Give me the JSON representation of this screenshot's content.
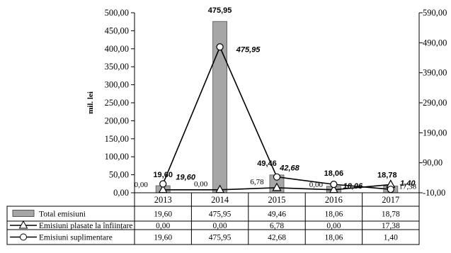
{
  "chart_data": {
    "type": "bar",
    "categories": [
      "2013",
      "2014",
      "2015",
      "2016",
      "2017"
    ],
    "ylabel": "mil. lei",
    "ylim": [
      0,
      500
    ],
    "y_ticks": [
      "0,00",
      "50,00",
      "100,00",
      "150,00",
      "200,00",
      "250,00",
      "300,00",
      "350,00",
      "400,00",
      "450,00",
      "500,00"
    ],
    "y2lim": [
      -10,
      590
    ],
    "y2_ticks": [
      "-10,00",
      "90,00",
      "190,00",
      "290,00",
      "390,00",
      "490,00",
      "590,00"
    ],
    "series": [
      {
        "name": "Total emisiuni",
        "type": "bar",
        "axis": "left",
        "color": "#a6a6a6",
        "values": [
          19.6,
          475.95,
          49.46,
          18.06,
          18.78
        ],
        "labels": [
          "19,60",
          "475,95",
          "49,46",
          "18,06",
          "18,78"
        ]
      },
      {
        "name": "Emisiuni plasate la înființare",
        "type": "line",
        "marker": "triangle",
        "axis": "right",
        "color": "#000000",
        "values": [
          0.0,
          0.0,
          6.78,
          0.0,
          17.38
        ],
        "labels": [
          "0,00",
          "0,00",
          "6,78",
          "0,00",
          "17,38"
        ]
      },
      {
        "name": "Emisiuni suplimentare",
        "type": "line",
        "marker": "circle",
        "axis": "right",
        "color": "#000000",
        "values": [
          19.6,
          475.95,
          42.68,
          18.06,
          1.4
        ],
        "labels": [
          "19,60",
          "475,95",
          "42,68",
          "18,06",
          "1,40"
        ]
      }
    ],
    "grid": false,
    "legend": "data-table-below"
  }
}
